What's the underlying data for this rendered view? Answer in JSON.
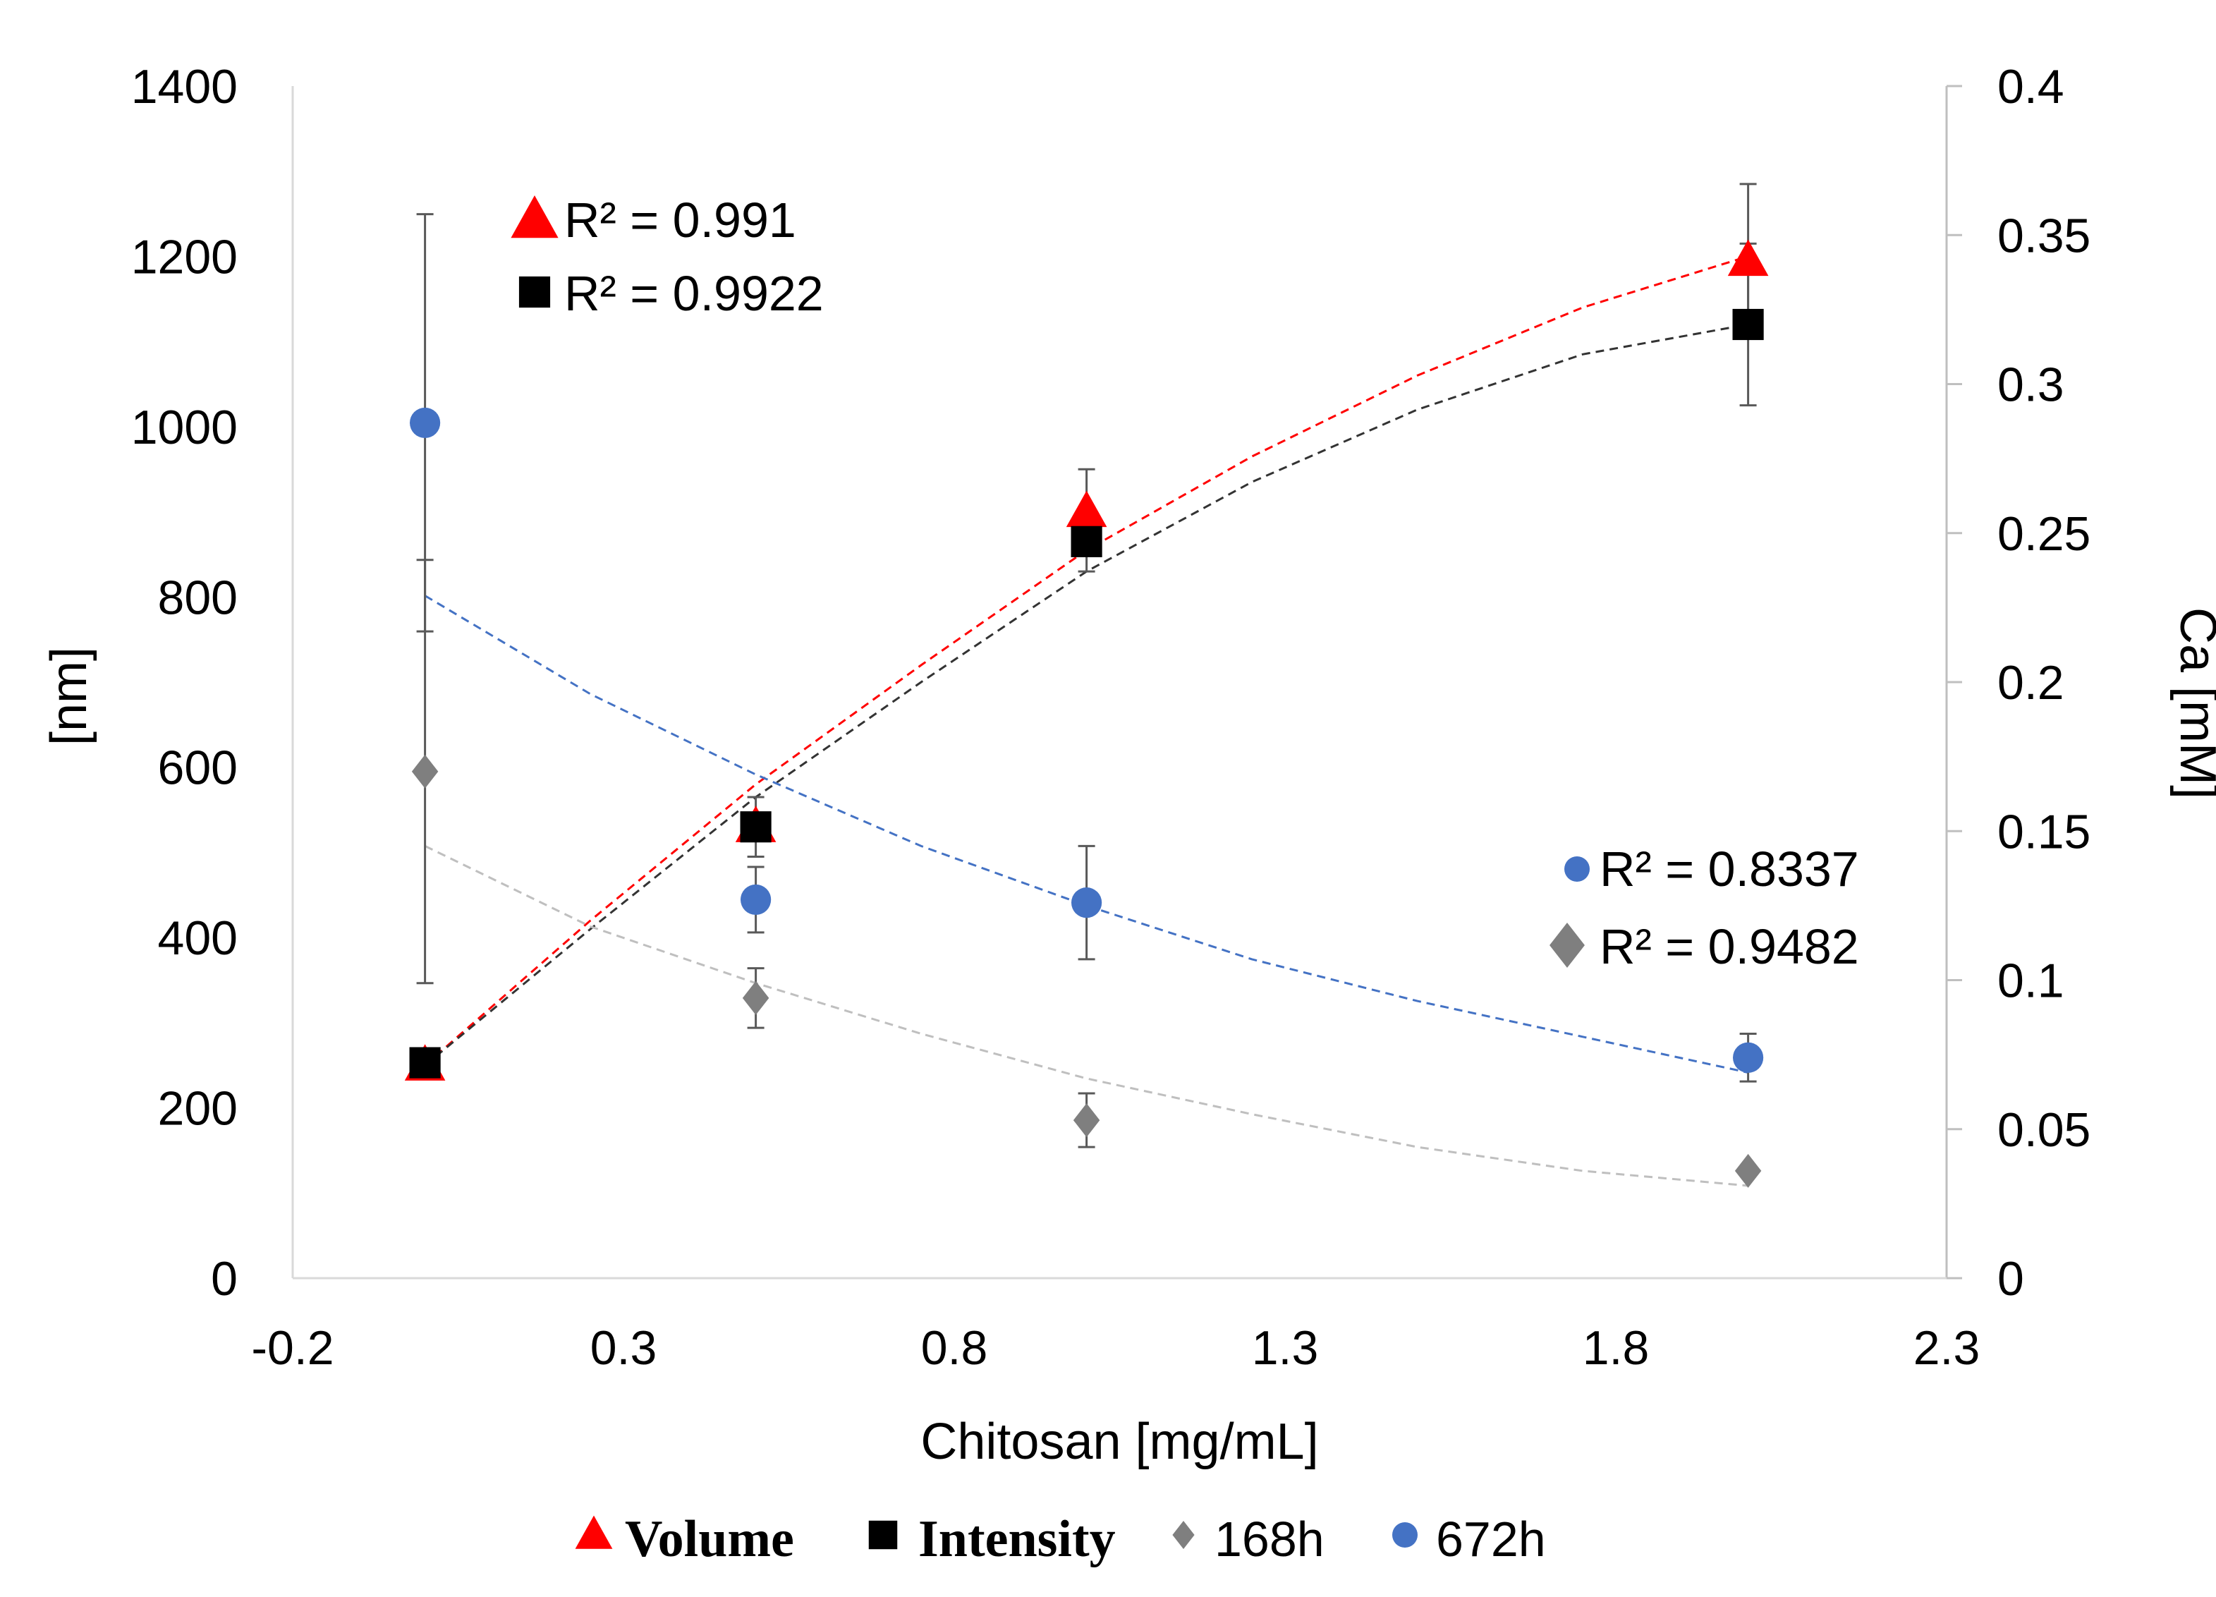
{
  "chart_data": {
    "type": "scatter",
    "title": "",
    "xlabel": "Chitosan [mg/mL]",
    "ylabel": "[nm]",
    "y2label": "Ca [mM]",
    "xlim": [
      -0.2,
      2.3
    ],
    "ylim": [
      0,
      1400
    ],
    "y2lim": [
      0,
      0.4
    ],
    "xticks": [
      "-0.2",
      "0.3",
      "0.8",
      "1.3",
      "1.8",
      "2.3"
    ],
    "yticks": [
      "0",
      "200",
      "400",
      "600",
      "800",
      "1000",
      "1200",
      "1400"
    ],
    "y2ticks": [
      "0",
      "0.05",
      "0.1",
      "0.15",
      "0.2",
      "0.25",
      "0.3",
      "0.35",
      "0.4"
    ],
    "series": [
      {
        "name": "Volume",
        "axis": "left",
        "marker": "triangle",
        "color": "#ff0000",
        "x": [
          0,
          0.5,
          1,
          2
        ],
        "y": [
          250,
          530,
          900,
          1195
        ],
        "err": [
          0,
          0,
          50,
          90
        ],
        "trend": {
          "type": "poly2",
          "color": "#ff0000",
          "r2_label": "R² = 0.991",
          "x": [
            0,
            0.25,
            0.5,
            0.75,
            1.0,
            1.25,
            1.5,
            1.75,
            2.0
          ],
          "y": [
            250,
            420,
            580,
            720,
            855,
            965,
            1060,
            1140,
            1200
          ]
        }
      },
      {
        "name": "Intensity",
        "axis": "left",
        "marker": "square",
        "color": "#000000",
        "x": [
          0,
          0.5,
          1,
          2
        ],
        "y": [
          253,
          530,
          865,
          1120
        ],
        "err": [
          0,
          35,
          35,
          95
        ],
        "trend": {
          "type": "poly2",
          "color": "#333333",
          "r2_label": "R² = 0.9922",
          "x": [
            0,
            0.25,
            0.5,
            0.75,
            1.0,
            1.25,
            1.5,
            1.75,
            2.0
          ],
          "y": [
            250,
            410,
            565,
            700,
            830,
            935,
            1020,
            1085,
            1120
          ]
        }
      },
      {
        "name": "168h",
        "axis": "right",
        "marker": "diamond",
        "color": "#7f7f7f",
        "x": [
          0,
          0.5,
          1,
          2
        ],
        "y": [
          0.17,
          0.094,
          0.053,
          0.036
        ],
        "err": [
          0.071,
          0.01,
          0.009,
          0
        ],
        "trend": {
          "type": "poly2",
          "color": "#bfbfbf",
          "r2_label": "R² = 0.9482",
          "x": [
            0,
            0.25,
            0.5,
            0.75,
            1.0,
            1.25,
            1.5,
            1.75,
            2.0
          ],
          "y": [
            0.145,
            0.118,
            0.099,
            0.082,
            0.067,
            0.055,
            0.044,
            0.036,
            0.031
          ]
        }
      },
      {
        "name": "672h",
        "axis": "right",
        "marker": "circle",
        "color": "#4472c4",
        "x": [
          0,
          0.5,
          1,
          2
        ],
        "y": [
          0.287,
          0.127,
          0.126,
          0.074
        ],
        "err": [
          0.07,
          0.011,
          0.019,
          0.008
        ],
        "trend": {
          "type": "poly2",
          "color": "#4472c4",
          "r2_label": "R² = 0.8337",
          "x": [
            0,
            0.25,
            0.5,
            0.75,
            1.0,
            1.25,
            1.5,
            1.75,
            2.0
          ],
          "y": [
            0.229,
            0.196,
            0.169,
            0.145,
            0.125,
            0.107,
            0.093,
            0.081,
            0.069
          ]
        }
      }
    ],
    "legend": {
      "position": "bottom",
      "items": [
        {
          "label": "Volume",
          "marker": "triangle",
          "color": "#ff0000",
          "style": "serif-bold"
        },
        {
          "label": "Intensity",
          "marker": "square",
          "color": "#000000",
          "style": "serif-bold"
        },
        {
          "label": "168h",
          "marker": "diamond",
          "color": "#7f7f7f",
          "style": "sans"
        },
        {
          "label": "672h",
          "marker": "circle",
          "color": "#4472c4",
          "style": "sans"
        }
      ]
    },
    "annotations": [
      {
        "series": "Volume",
        "text": "R² = 0.991",
        "position": "upper-left"
      },
      {
        "series": "Intensity",
        "text": "R² = 0.9922",
        "position": "upper-left"
      },
      {
        "series": "672h",
        "text": "R² = 0.8337",
        "position": "lower-right"
      },
      {
        "series": "168h",
        "text": "R² = 0.9482",
        "position": "lower-right"
      }
    ]
  }
}
